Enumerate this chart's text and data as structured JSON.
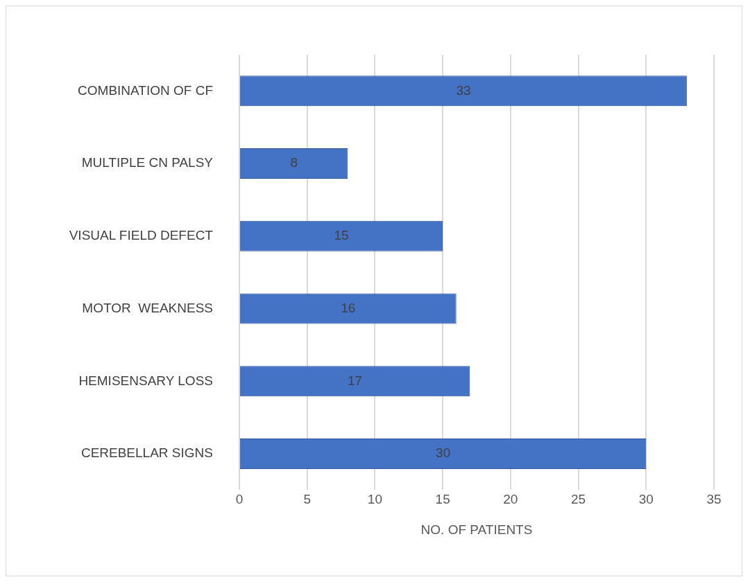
{
  "chart_data": {
    "type": "bar",
    "orientation": "horizontal",
    "categories": [
      "COMBINATION OF CF",
      "MULTIPLE CN PALSY",
      "VISUAL FIELD DEFECT",
      "MOTOR  WEAKNESS",
      "HEMISENSARY LOSS",
      "CEREBELLAR SIGNS"
    ],
    "values": [
      33,
      8,
      15,
      16,
      17,
      30
    ],
    "color": "#4472c4",
    "xlabel": "NO. OF PATIENTS",
    "xlim": [
      0,
      35
    ],
    "xticks": [
      0,
      5,
      10,
      15,
      20,
      25,
      30,
      35
    ],
    "grid": "x",
    "data_labels": true,
    "legend": false
  }
}
